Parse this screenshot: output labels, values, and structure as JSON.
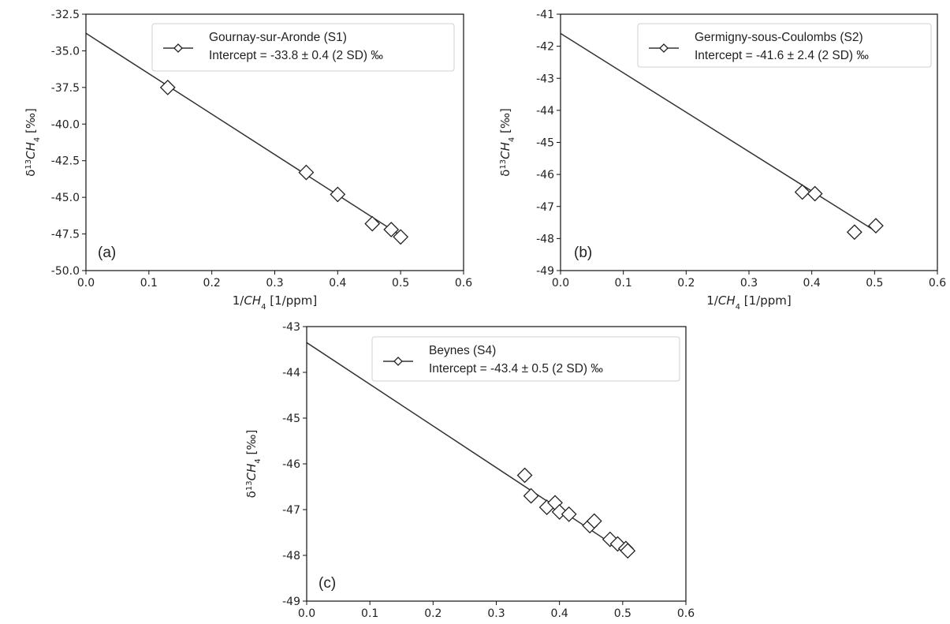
{
  "chart_data": [
    {
      "type": "scatter",
      "panel": "(a)",
      "xlabel": "1/CH4 [1/ppm]",
      "ylabel": "δ13CH4 [‰]",
      "xlim": [
        0.0,
        0.6
      ],
      "ylim": [
        -50.0,
        -32.5
      ],
      "xticks": [
        "0.0",
        "0.1",
        "0.2",
        "0.3",
        "0.4",
        "0.5",
        "0.6"
      ],
      "yticks": [
        "-32.5",
        "-35.0",
        "-37.5",
        "-40.0",
        "-42.5",
        "-45.0",
        "-47.5",
        "-50.0"
      ],
      "legend": {
        "position": "top-right",
        "lines": [
          "Gournay-sur-Aronde (S1)",
          "Intercept = -33.8 ± 0.4 (2 SD) ‰"
        ]
      },
      "fit": {
        "intercept": -33.8,
        "x_end": 0.5,
        "y_end": -47.6
      },
      "points": [
        {
          "x": 0.13,
          "y": -37.5
        },
        {
          "x": 0.35,
          "y": -43.3
        },
        {
          "x": 0.4,
          "y": -44.8
        },
        {
          "x": 0.455,
          "y": -46.8
        },
        {
          "x": 0.485,
          "y": -47.2
        },
        {
          "x": 0.5,
          "y": -47.7
        }
      ]
    },
    {
      "type": "scatter",
      "panel": "(b)",
      "xlabel": "1/CH4 [1/ppm]",
      "ylabel": "δ13CH4 [‰]",
      "xlim": [
        0.0,
        0.6
      ],
      "ylim": [
        -49,
        -41
      ],
      "xticks": [
        "0.0",
        "0.1",
        "0.2",
        "0.3",
        "0.4",
        "0.5",
        "0.6"
      ],
      "yticks": [
        "-41",
        "-42",
        "-43",
        "-44",
        "-45",
        "-46",
        "-47",
        "-48",
        "-49"
      ],
      "legend": {
        "position": "top-right",
        "lines": [
          "Germigny-sous-Coulombs (S2)",
          "Intercept = -41.6 ± 2.4 (2 SD) ‰"
        ]
      },
      "fit": {
        "intercept": -41.6,
        "x_end": 0.5,
        "y_end": -47.75
      },
      "points": [
        {
          "x": 0.385,
          "y": -46.55
        },
        {
          "x": 0.405,
          "y": -46.6
        },
        {
          "x": 0.468,
          "y": -47.8
        },
        {
          "x": 0.502,
          "y": -47.6
        }
      ]
    },
    {
      "type": "scatter",
      "panel": "(c)",
      "xlabel": "1/CH4 [1/ppm]",
      "ylabel": "δ13CH4 [‰]",
      "xlim": [
        0.0,
        0.6
      ],
      "ylim": [
        -49,
        -43
      ],
      "xticks": [
        "0.0",
        "0.1",
        "0.2",
        "0.3",
        "0.4",
        "0.5",
        "0.6"
      ],
      "yticks": [
        "-43",
        "-44",
        "-45",
        "-46",
        "-47",
        "-48",
        "-49"
      ],
      "legend": {
        "position": "top-right",
        "lines": [
          "Beynes (S4)",
          "Intercept = -43.4 ± 0.5 (2 SD) ‰"
        ]
      },
      "fit": {
        "intercept": -43.35,
        "x_end": 0.505,
        "y_end": -47.95
      },
      "points": [
        {
          "x": 0.345,
          "y": -46.25
        },
        {
          "x": 0.355,
          "y": -46.7
        },
        {
          "x": 0.38,
          "y": -46.95
        },
        {
          "x": 0.393,
          "y": -46.85
        },
        {
          "x": 0.4,
          "y": -47.05
        },
        {
          "x": 0.415,
          "y": -47.1
        },
        {
          "x": 0.448,
          "y": -47.35
        },
        {
          "x": 0.455,
          "y": -47.25
        },
        {
          "x": 0.48,
          "y": -47.65
        },
        {
          "x": 0.492,
          "y": -47.75
        },
        {
          "x": 0.505,
          "y": -47.85
        },
        {
          "x": 0.508,
          "y": -47.9
        }
      ]
    }
  ]
}
